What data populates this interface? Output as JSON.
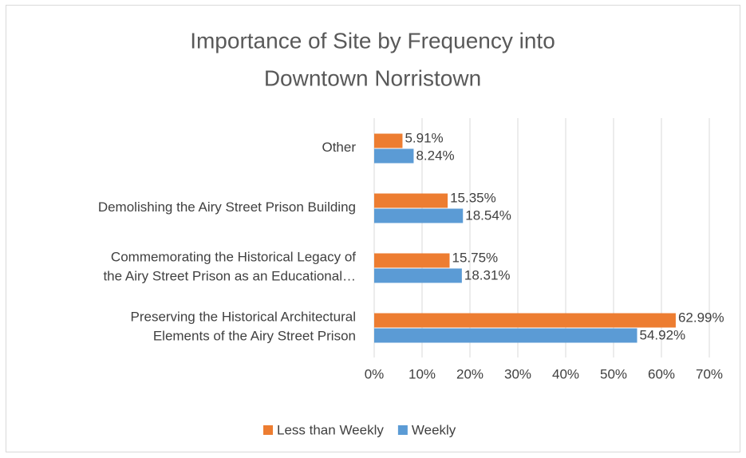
{
  "chart_data": {
    "type": "bar",
    "orientation": "horizontal",
    "title": "Importance of Site by Frequency into\nDowntown Norristown",
    "categories": [
      "Other",
      "Demolishing the Airy Street Prison Building",
      "Commemorating the Historical Legacy of\nthe Airy Street Prison as an Educational…",
      "Preserving the Historical Architectural\nElements of the Airy Street Prison"
    ],
    "series": [
      {
        "name": "Less than Weekly",
        "color": "#ed7d31",
        "values": [
          5.91,
          15.35,
          15.75,
          62.99
        ],
        "value_labels": [
          "5.91%",
          "15.35%",
          "15.75%",
          "62.99%"
        ]
      },
      {
        "name": "Weekly",
        "color": "#5b9bd5",
        "values": [
          8.24,
          18.54,
          18.31,
          54.92
        ],
        "value_labels": [
          "8.24%",
          "18.54%",
          "18.31%",
          "54.92%"
        ]
      }
    ],
    "xlim": [
      0,
      70
    ],
    "xticks": [
      {
        "value": 0,
        "label": "0%"
      },
      {
        "value": 10,
        "label": "10%"
      },
      {
        "value": 20,
        "label": "20%"
      },
      {
        "value": 30,
        "label": "30%"
      },
      {
        "value": 40,
        "label": "40%"
      },
      {
        "value": 50,
        "label": "50%"
      },
      {
        "value": 60,
        "label": "60%"
      },
      {
        "value": 70,
        "label": "70%"
      }
    ],
    "grid": true,
    "legend": "bottom"
  }
}
